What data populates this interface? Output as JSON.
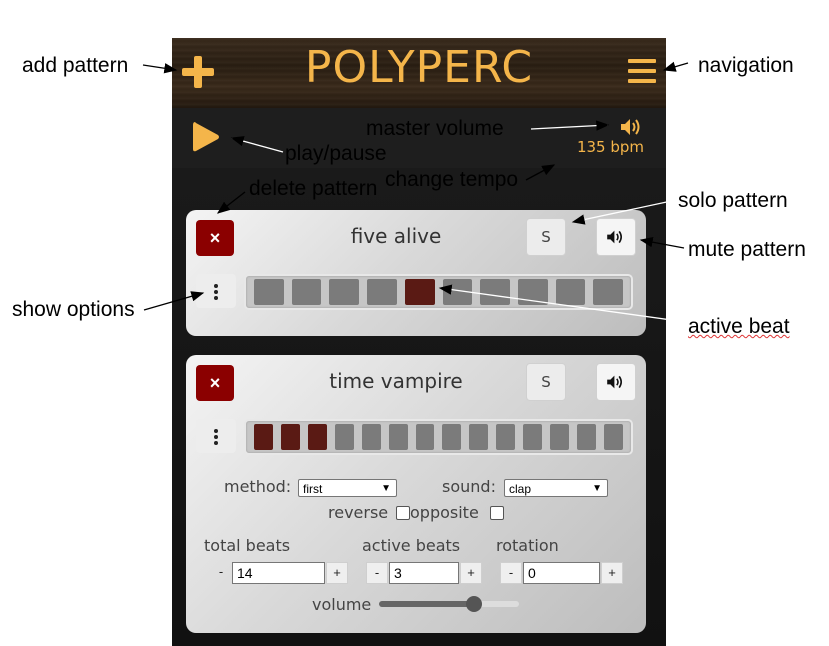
{
  "app": {
    "title": "POLYPERC",
    "tempo": "135 bpm"
  },
  "annotations": {
    "add_pattern": "add pattern",
    "navigation": "navigation",
    "master_volume": "master volume",
    "play_pause": "play/pause",
    "change_tempo": "change tempo",
    "delete_pattern": "delete pattern",
    "solo_pattern": "solo pattern",
    "mute_pattern": "mute pattern",
    "show_options": "show options",
    "active_beat": "active beat"
  },
  "patterns": [
    {
      "name": "five alive",
      "delete_label": "×",
      "solo_label": "S",
      "beats": [
        0,
        0,
        0,
        0,
        1,
        0,
        0,
        0,
        0,
        0
      ]
    },
    {
      "name": "time vampire",
      "delete_label": "×",
      "solo_label": "S",
      "beats": [
        1,
        1,
        1,
        0,
        0,
        0,
        0,
        0,
        0,
        0,
        0,
        0,
        0,
        0
      ],
      "options": {
        "method_label": "method:",
        "method_value": "first",
        "sound_label": "sound:",
        "sound_value": "clap",
        "reverse_label": "reverse",
        "reverse_checked": false,
        "opposite_label": "opposite",
        "opposite_checked": false,
        "total_beats_label": "total beats",
        "total_beats_value": "14",
        "active_beats_label": "active beats",
        "active_beats_value": "3",
        "rotation_label": "rotation",
        "rotation_value": "0",
        "minus": "-",
        "plus": "+",
        "volume_label": "volume",
        "volume_level": 0.68
      }
    }
  ],
  "colors": {
    "accent": "#f4b54a",
    "active_beat": "#5a1a14",
    "inactive_beat": "#7b7b7b",
    "delete": "#8b0000"
  },
  "icons": {
    "add": "plus-icon",
    "navigation": "hamburger-menu-icon",
    "play": "play-icon",
    "volume": "speaker-icon",
    "options": "vertical-dots-icon",
    "delete": "close-icon"
  }
}
